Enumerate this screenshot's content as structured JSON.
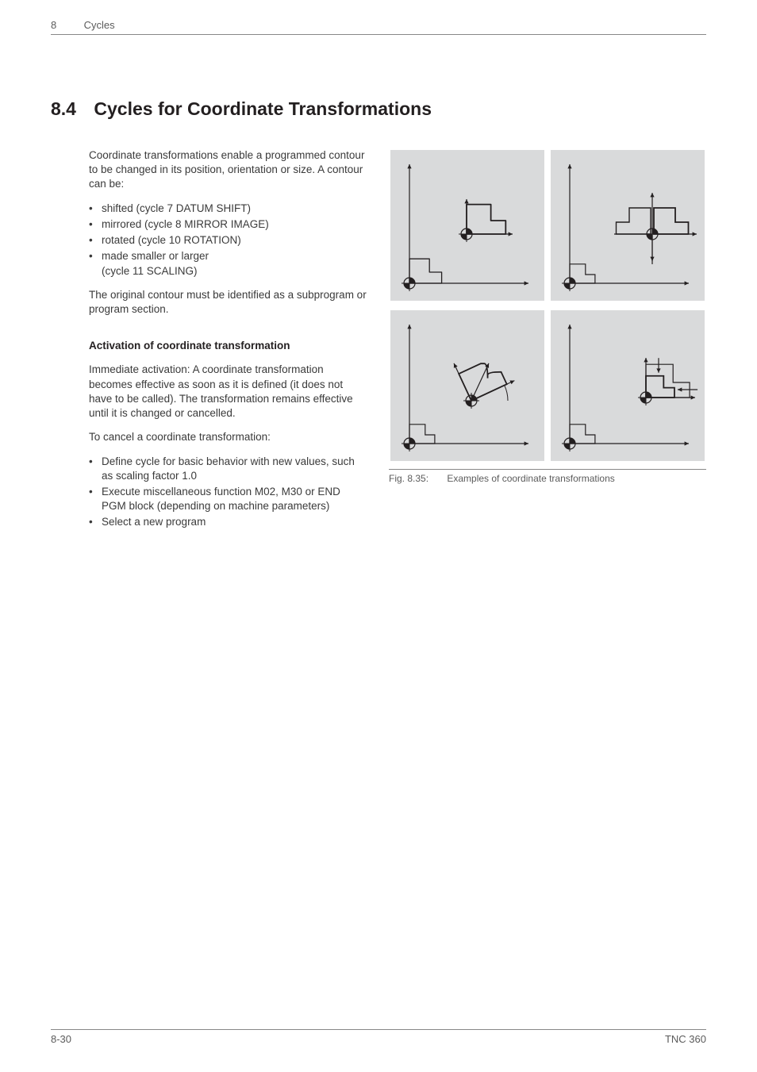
{
  "header": {
    "chapter_number": "8",
    "chapter_title": "Cycles"
  },
  "section": {
    "number": "8.4",
    "title": "Cycles for Coordinate Transformations"
  },
  "body": {
    "intro": "Coordinate transformations enable a programmed contour to be changed in its position, orientation or size. A contour can be:",
    "bullets1": [
      "shifted (cycle 7 DATUM SHIFT)",
      "mirrored (cycle 8 MIRROR IMAGE)",
      "rotated (cycle 10 ROTATION)",
      "made smaller or larger",
      "(cycle 11 SCALING)"
    ],
    "para2": "The original contour must be identified as a subprogram or program section.",
    "subhead": "Activation of coordinate transformation",
    "para3": "Immediate activation: A coordinate transformation becomes effective as soon as it is defined (it does not have to be called). The transformation remains effective until it is changed or cancelled.",
    "para4": "To cancel a coordinate transformation:",
    "bullets2": [
      "Define cycle for basic behavior with new values, such as scaling factor 1.0",
      "Execute miscellaneous function M02, M30 or END PGM block (depending on machine parameters)",
      "Select a new program"
    ]
  },
  "figure": {
    "number": "Fig. 8.35:",
    "caption": "Examples of coordinate transformations",
    "panel_bg": "#d9dadb",
    "stroke": "#231f20",
    "light_stroke": "#9a9a9a",
    "panels": [
      {
        "type": "datum_shift"
      },
      {
        "type": "mirror"
      },
      {
        "type": "rotation"
      },
      {
        "type": "scaling"
      }
    ]
  },
  "footer": {
    "left": "8-30",
    "right": "TNC 360"
  }
}
